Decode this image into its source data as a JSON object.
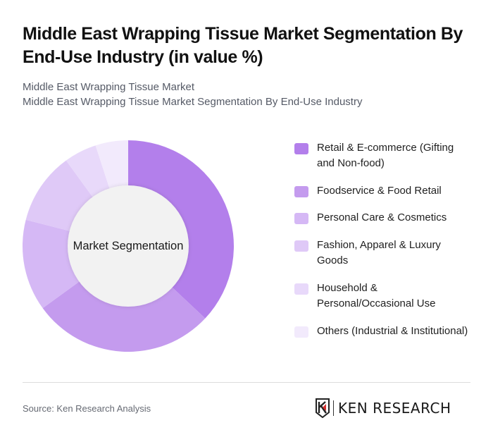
{
  "header": {
    "title": "Middle East Wrapping Tissue Market Segmentation By End-Use Industry (in value %)",
    "subtitle_line1": "Middle East Wrapping Tissue Market",
    "subtitle_line2": "Middle East Wrapping Tissue Market Segmentation By End-Use Industry"
  },
  "donut": {
    "center_label": "Market Segmentation"
  },
  "legend": {
    "items": [
      {
        "label": "Retail & E-commerce (Gifting and Non-food)",
        "color": "#b37feb"
      },
      {
        "label": "Foodservice & Food Retail",
        "color": "#c49bee"
      },
      {
        "label": "Personal Care & Cosmetics",
        "color": "#d5b8f5"
      },
      {
        "label": "Fashion, Apparel & Luxury Goods",
        "color": "#dfc9f7"
      },
      {
        "label": "Household & Personal/Occasional Use",
        "color": "#e8d9fa"
      },
      {
        "label": "Others (Industrial & Institutional)",
        "color": "#f2eafc"
      }
    ]
  },
  "footer": {
    "source": "Source: Ken Research Analysis",
    "logo_text": "KEN RESEARCH"
  },
  "chart_data": {
    "type": "pie",
    "variant": "donut",
    "title": "Middle East Wrapping Tissue Market Segmentation By End-Use Industry (in value %)",
    "subtitle": "Middle East Wrapping Tissue Market Segmentation By End-Use Industry",
    "center_label": "Market Segmentation",
    "categories": [
      "Retail & E-commerce (Gifting and Non-food)",
      "Foodservice & Food Retail",
      "Personal Care & Cosmetics",
      "Fashion, Apparel & Luxury Goods",
      "Household & Personal/Occasional Use",
      "Others (Industrial & Institutional)"
    ],
    "values": [
      37,
      28,
      14,
      11,
      5,
      5
    ],
    "colors": [
      "#b37feb",
      "#c49bee",
      "#d5b8f5",
      "#dfc9f7",
      "#e8d9fa",
      "#f2eafc"
    ],
    "unit": "%",
    "legend_position": "right",
    "start_angle": "top, clockwise",
    "data_labels": false
  }
}
